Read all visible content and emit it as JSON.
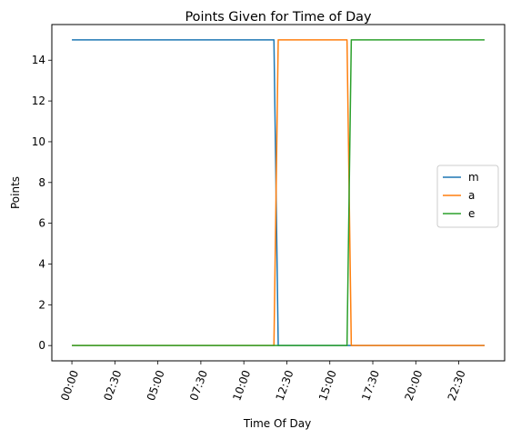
{
  "chart_data": {
    "type": "line",
    "title": "Points Given for Time of Day",
    "xlabel": "Time Of Day",
    "ylabel": "Points",
    "x_unit": "time of day (hours)",
    "xlim": [
      "-01:10",
      "25:10"
    ],
    "ylim": [
      -0.75,
      15.75
    ],
    "x_ticks": [
      "00:00",
      "02:30",
      "05:00",
      "07:30",
      "10:00",
      "12:30",
      "15:00",
      "17:30",
      "20:00",
      "22:30"
    ],
    "y_ticks": [
      "0",
      "2",
      "4",
      "6",
      "8",
      "10",
      "12",
      "14"
    ],
    "grid": false,
    "legend_position": "center-right",
    "series": [
      {
        "name": "m",
        "color": "#1f77b4",
        "points": [
          [
            "00:00",
            15
          ],
          [
            "11:45",
            15
          ],
          [
            "12:00",
            0
          ],
          [
            "24:00",
            0
          ]
        ]
      },
      {
        "name": "a",
        "color": "#ff7f0e",
        "points": [
          [
            "00:00",
            0
          ],
          [
            "11:45",
            0
          ],
          [
            "12:00",
            15
          ],
          [
            "16:00",
            15
          ],
          [
            "16:15",
            0
          ],
          [
            "24:00",
            0
          ]
        ]
      },
      {
        "name": "e",
        "color": "#2ca02c",
        "points": [
          [
            "00:00",
            0
          ],
          [
            "16:00",
            0
          ],
          [
            "16:15",
            15
          ],
          [
            "24:00",
            15
          ]
        ]
      }
    ]
  }
}
